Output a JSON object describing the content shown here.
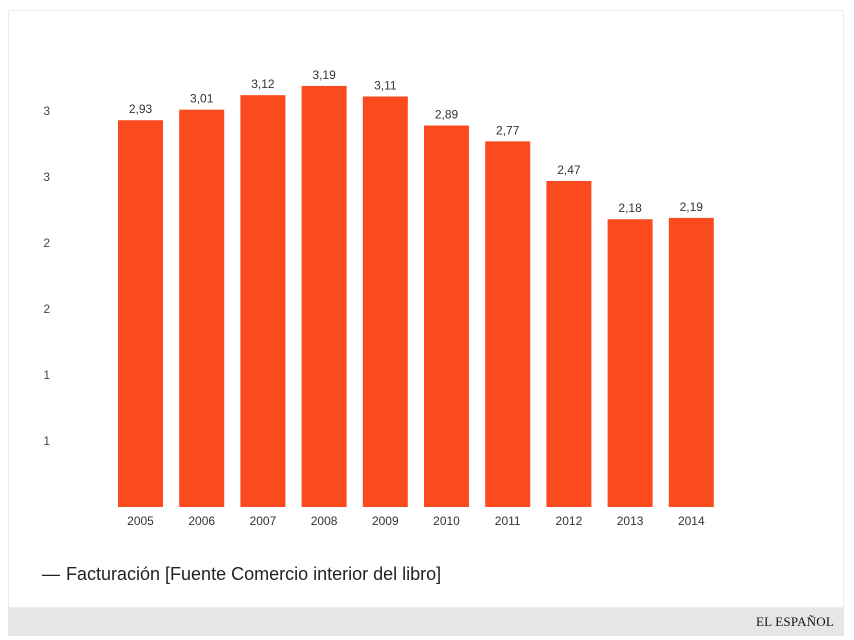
{
  "chart_data": {
    "type": "bar",
    "categories": [
      "2005",
      "2006",
      "2007",
      "2008",
      "2009",
      "2010",
      "2011",
      "2012",
      "2013",
      "2014"
    ],
    "values": [
      2.93,
      3.01,
      3.12,
      3.19,
      3.11,
      2.89,
      2.77,
      2.47,
      2.18,
      2.19
    ],
    "value_labels": [
      "2,93",
      "3,01",
      "3,12",
      "3,19",
      "3,11",
      "2,89",
      "2,77",
      "2,47",
      "2,18",
      "2,19"
    ],
    "y_tick_labels": [
      "3",
      "3",
      "2",
      "2",
      "1",
      "1"
    ],
    "y_tick_values": [
      3.0,
      2.5,
      2.0,
      1.5,
      1.0,
      0.5
    ],
    "ylim": [
      0,
      3.5
    ],
    "series": [
      {
        "name": "Facturación [Fuente Comercio interior del libro]"
      }
    ],
    "legend": "bottom-left",
    "grid": false,
    "bar_color": "#fb4a1d"
  },
  "legend": {
    "dash": "—",
    "label": "Facturación [Fuente Comercio interior del libro]"
  },
  "footer": {
    "brand": "EL ESPAÑOL"
  }
}
